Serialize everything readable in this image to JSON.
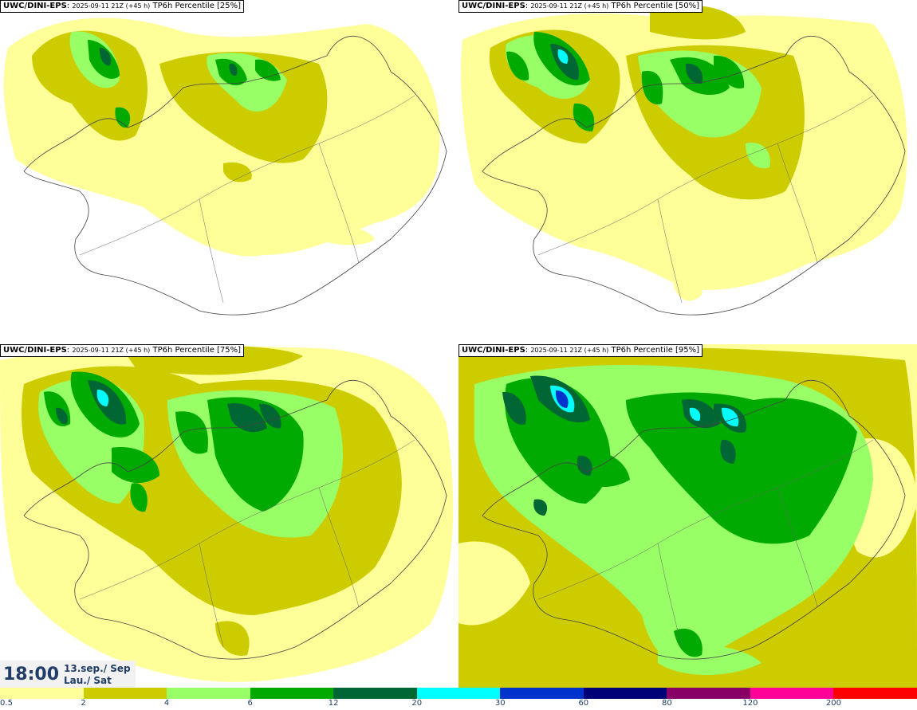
{
  "panels": [
    {
      "model": "UWC/DINI-EPS",
      "run": "2025-09-11 21Z (+45 h)",
      "field": "TP6h Percentile [25%]"
    },
    {
      "model": "UWC/DINI-EPS",
      "run": "2025-09-11 21Z (+45 h)",
      "field": "TP6h Percentile [50%]"
    },
    {
      "model": "UWC/DINI-EPS",
      "run": "2025-09-11 21Z (+45 h)",
      "field": "TP6h Percentile [75%]"
    },
    {
      "model": "UWC/DINI-EPS",
      "run": "2025-09-11 21Z (+45 h)",
      "field": "TP6h Percentile [95%]"
    }
  ],
  "valid_time": {
    "time": "18:00",
    "date_line1": "13.sep./ Sep",
    "date_line2": "Lau./ Sat"
  },
  "colorbar": {
    "labels": [
      "0.5",
      "2",
      "4",
      "6",
      "12",
      "20",
      "30",
      "60",
      "80",
      "120",
      "200"
    ],
    "colors": [
      "#ffff99",
      "#cccc00",
      "#99ff66",
      "#00aa00",
      "#006633",
      "#00ffff",
      "#0033cc",
      "#000077",
      "#880066",
      "#ff0099",
      "#ff0000"
    ]
  },
  "fill_colors": {
    "c05": "#ffff99",
    "c2": "#cccc00",
    "c4": "#99ff66",
    "c6": "#00aa00",
    "c12": "#006633",
    "c20": "#00ffff",
    "c30": "#0033cc"
  }
}
